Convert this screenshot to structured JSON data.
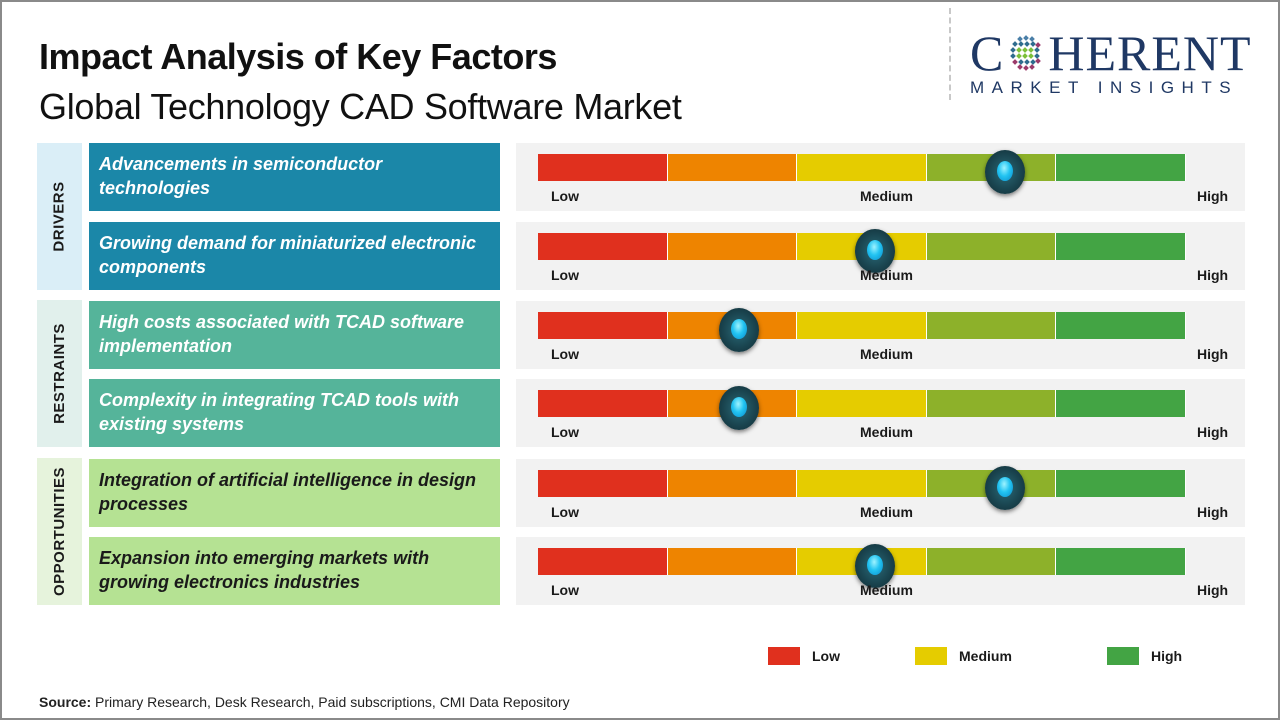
{
  "header": {
    "title": "Impact Analysis of Key Factors",
    "subtitle": "Global Technology CAD Software Market"
  },
  "logo": {
    "brand_prefix": "C",
    "brand_suffix": "HERENT",
    "tagline": "MARKET INSIGHTS",
    "icon": "globe-dots-icon"
  },
  "scale_labels": {
    "low": "Low",
    "medium": "Medium",
    "high": "High"
  },
  "segment_colors": [
    "#e0301e",
    "#ee8400",
    "#e5cc00",
    "#8db12a",
    "#43a444"
  ],
  "categories": [
    {
      "label": "DRIVERS",
      "bg": "#daeef7",
      "factor_bg": "#1b87a8",
      "factor_color": "#ffffff"
    },
    {
      "label": "RESTRAINTS",
      "bg": "#e1f0ec",
      "factor_bg": "#55b49a",
      "factor_color": "#ffffff"
    },
    {
      "label": "OPPORTUNITIES",
      "bg": "#e6f3dc",
      "factor_bg": "#b5e293",
      "factor_color": "#1a1a1a"
    }
  ],
  "chart_data": {
    "type": "gauge-table",
    "title": "Impact Analysis of Key Factors",
    "subtitle": "Global Technology CAD Software Market",
    "scale": {
      "min": 0,
      "max": 100,
      "tick_labels": [
        "Low",
        "Medium",
        "High"
      ],
      "segments": 5
    },
    "factors": [
      {
        "category": "DRIVERS",
        "label": "Advancements in semiconductor technologies",
        "impact": 72,
        "level": "Medium-High"
      },
      {
        "category": "DRIVERS",
        "label": "Growing demand for miniaturized electronic components",
        "impact": 52,
        "level": "Medium"
      },
      {
        "category": "RESTRAINTS",
        "label": "High costs associated with TCAD software implementation",
        "impact": 31,
        "level": "Low-Medium"
      },
      {
        "category": "RESTRAINTS",
        "label": "Complexity in integrating TCAD tools with existing systems",
        "impact": 31,
        "level": "Low-Medium"
      },
      {
        "category": "OPPORTUNITIES",
        "label": "Integration of artificial intelligence in design processes",
        "impact": 72,
        "level": "Medium-High"
      },
      {
        "category": "OPPORTUNITIES",
        "label": "Expansion into emerging markets with growing electronics industries",
        "impact": 52,
        "level": "Medium"
      }
    ],
    "legend": [
      {
        "label": "Low",
        "color": "#e0301e"
      },
      {
        "label": "Medium",
        "color": "#e5cc00"
      },
      {
        "label": "High",
        "color": "#43a444"
      }
    ],
    "legend_position": "bottom-right"
  },
  "source": {
    "label": "Source:",
    "text": " Primary Research, Desk Research, Paid subscriptions, CMI Data Repository"
  }
}
